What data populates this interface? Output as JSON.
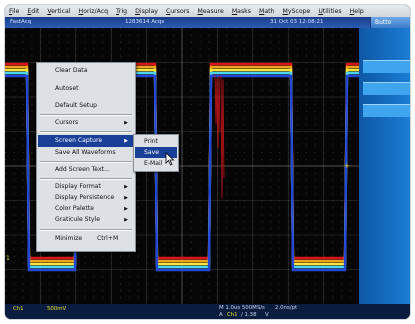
{
  "menubar": {
    "items": [
      "File",
      "Edit",
      "Vertical",
      "Horiz/Acq",
      "Trig",
      "Display",
      "Cursors",
      "Measure",
      "Masks",
      "Math",
      "MyScope",
      "Utilities",
      "Help"
    ]
  },
  "status": {
    "mode": "FastAcq",
    "acqs": "1283614 Acqs",
    "date": "31 Oct 03 12:08:21"
  },
  "top_button": "Butto",
  "context_menu": {
    "items": [
      {
        "label": "Clear Data"
      },
      {
        "label": "Autoset"
      },
      {
        "label": "Default Setup"
      },
      {
        "label": "Cursors",
        "submenu": true
      },
      {
        "label": "Screen Capture",
        "submenu": true,
        "selected": true
      },
      {
        "label": "Save All Waveforms"
      },
      {
        "label": "Add Screen Text..."
      },
      {
        "label": "Display Format",
        "submenu": true
      },
      {
        "label": "Display Persistence",
        "submenu": true
      },
      {
        "label": "Color Palette",
        "submenu": true
      },
      {
        "label": "Graticule Style",
        "submenu": true
      },
      {
        "label": "Minimize",
        "shortcut": "Ctrl+M"
      }
    ]
  },
  "submenu": {
    "items": [
      {
        "label": "Print"
      },
      {
        "label": "Save",
        "selected": true
      },
      {
        "label": "E-Mail"
      }
    ]
  },
  "bottom": {
    "channel": "Ch1",
    "scale": "500mV",
    "horizontal": "M 1.0us 500MS/s",
    "sample": "2.0ns/pt",
    "trigger_prefix": "A",
    "trigger_channel": "Ch1",
    "trigger_level": "/  1.38",
    "trigger_unit": "V"
  },
  "ground_marker": "1"
}
